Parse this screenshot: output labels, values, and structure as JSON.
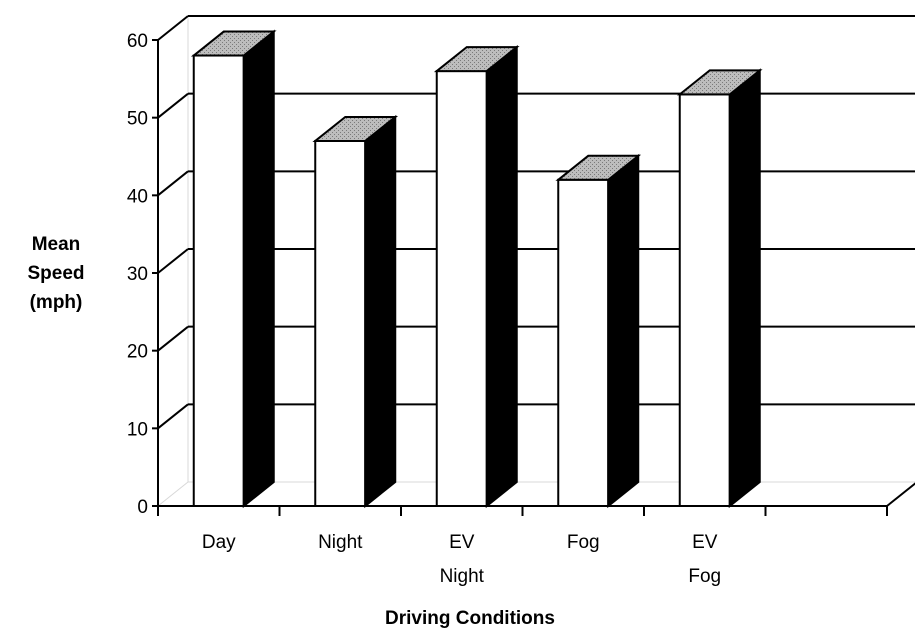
{
  "chart_data": {
    "type": "bar",
    "categories": [
      [
        "Day"
      ],
      [
        "Night"
      ],
      [
        "EV",
        "Night"
      ],
      [
        "Fog"
      ],
      [
        "EV",
        "Fog"
      ]
    ],
    "values": [
      58,
      47,
      56,
      42,
      53
    ],
    "ylabel": [
      "Mean",
      "Speed",
      "(mph)"
    ],
    "xlabel": "Driving Conditions",
    "ylim": [
      0,
      60
    ],
    "yticks": [
      "0",
      "10",
      "20",
      "30",
      "40",
      "50",
      "60"
    ],
    "grid": true,
    "legend": "none",
    "style": "3d-column",
    "colors": {
      "bar_front": "#ffffff",
      "bar_side": "#000000",
      "bar_top": "#bdbdbd",
      "grid": "#000000",
      "wall_edge": "#d9d9d9"
    }
  }
}
